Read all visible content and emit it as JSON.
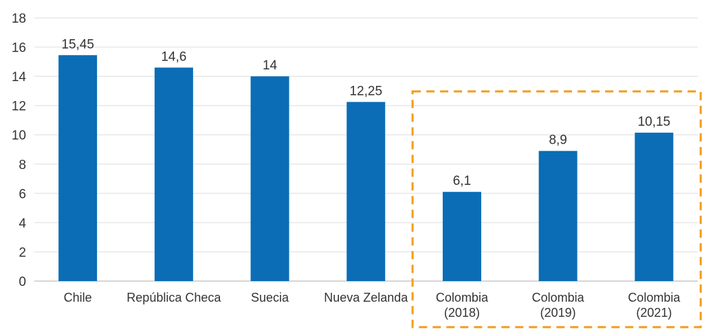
{
  "chart_data": {
    "type": "bar",
    "title": "",
    "xlabel": "",
    "ylabel": "",
    "ylim": [
      0,
      18
    ],
    "yticks": [
      0,
      2,
      4,
      6,
      8,
      10,
      12,
      14,
      16,
      18
    ],
    "grid": true,
    "categories": [
      [
        "Chile"
      ],
      [
        "República Checa"
      ],
      [
        "Suecia"
      ],
      [
        "Nueva Zelanda"
      ],
      [
        "Colombia",
        "(2018)"
      ],
      [
        "Colombia",
        "(2019)"
      ],
      [
        "Colombia",
        "(2021)"
      ]
    ],
    "values": [
      15.45,
      14.6,
      14,
      12.25,
      6.1,
      8.9,
      10.15
    ],
    "value_labels": [
      "15,45",
      "14,6",
      "14",
      "12,25",
      "6,1",
      "8,9",
      "10,15"
    ],
    "highlight": {
      "categories_from": 4,
      "categories_to": 6,
      "style": "dashed-box"
    },
    "colors": {
      "bar": "#0a6db6",
      "highlight": "#f39c1b",
      "grid": "#e8e8e8",
      "axis": "#c8c8c8"
    }
  }
}
